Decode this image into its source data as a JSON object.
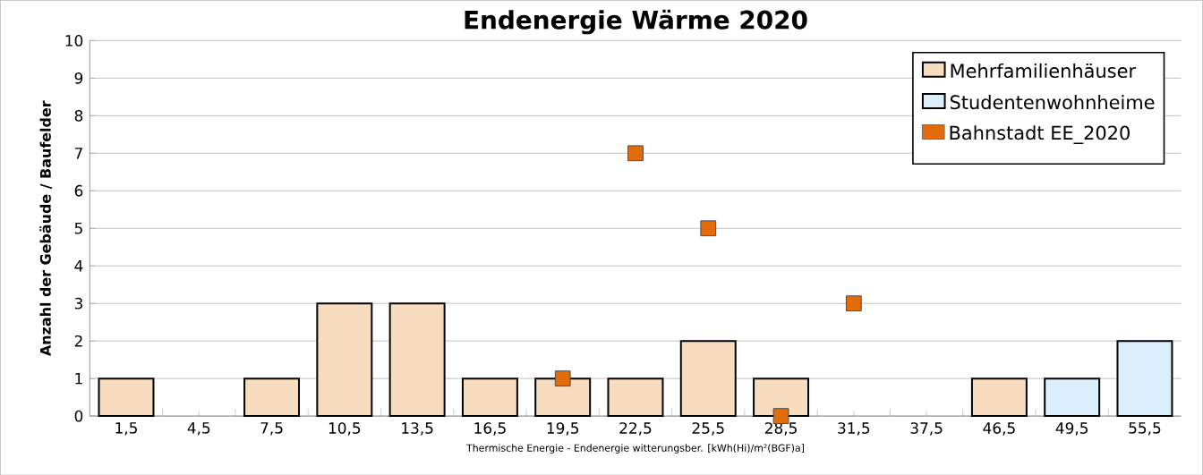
{
  "chart_data": {
    "type": "bar",
    "title": "Endenergie Wärme 2020",
    "xlabel": "Thermische Energie - Endenergie witterungsber. [kWh(Hi)/m²(BGF)a]",
    "ylabel": "Anzahl der Gebäude / Baufelder",
    "categories": [
      "1,5",
      "4,5",
      "7,5",
      "10,5",
      "13,5",
      "16,5",
      "19,5",
      "22,5",
      "25,5",
      "28,5",
      "31,5",
      "37,5",
      "46,5",
      "49,5",
      "55,5"
    ],
    "series": [
      {
        "name": "Mehrfamilienhäuser",
        "color": "#f8dcc0",
        "values": [
          1,
          null,
          1,
          3,
          3,
          1,
          1,
          1,
          2,
          1,
          null,
          null,
          1,
          null,
          null
        ]
      },
      {
        "name": "Studentenwohnheime",
        "color": "#dbeefb",
        "values": [
          null,
          null,
          null,
          null,
          null,
          null,
          null,
          null,
          null,
          null,
          null,
          null,
          null,
          1,
          2
        ]
      },
      {
        "name": "Bahnstadt EE_2020",
        "type": "scatter",
        "color": "#e36c0a",
        "marker": "square",
        "x": [
          "19,5",
          "22,5",
          "25,5",
          "28,5",
          "31,5"
        ],
        "values": [
          1,
          7,
          5,
          0,
          3
        ]
      }
    ],
    "ylim": [
      0,
      10
    ],
    "yticks": [
      0,
      1,
      2,
      3,
      4,
      5,
      6,
      7,
      8,
      9,
      10
    ],
    "grid": "y",
    "legend": "top right"
  }
}
